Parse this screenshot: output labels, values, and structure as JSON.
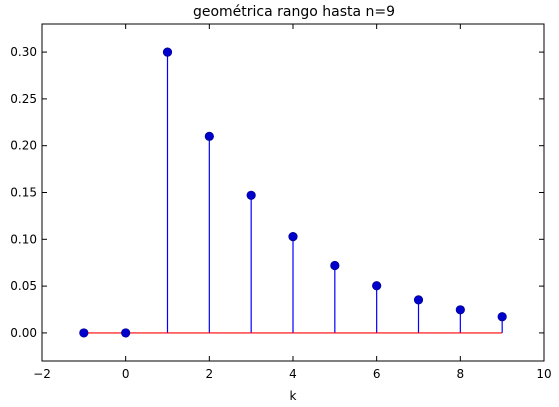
{
  "chart_data": {
    "type": "stem",
    "title": "geométrica rango hasta n=9",
    "xlabel": "k",
    "ylabel": "",
    "x": [
      -1,
      0,
      1,
      2,
      3,
      4,
      5,
      6,
      7,
      8,
      9
    ],
    "values": [
      0,
      0,
      0.3,
      0.21,
      0.147,
      0.1029,
      0.072,
      0.0504,
      0.0353,
      0.0247,
      0.0173
    ],
    "xlim": [
      -2,
      10
    ],
    "ylim": [
      -0.03,
      0.33
    ],
    "xticks": [
      -2,
      0,
      2,
      4,
      6,
      8,
      10
    ],
    "xtick_labels": [
      "−2",
      "0",
      "2",
      "4",
      "6",
      "8",
      "10"
    ],
    "yticks": [
      0.0,
      0.05,
      0.1,
      0.15,
      0.2,
      0.25,
      0.3
    ],
    "ytick_labels": [
      "0.00",
      "0.05",
      "0.10",
      "0.15",
      "0.20",
      "0.25",
      "0.30"
    ],
    "grid": false,
    "colors": {
      "stem": "#0000ff",
      "marker": "#0000cc",
      "baseline": "#ff0000"
    }
  }
}
